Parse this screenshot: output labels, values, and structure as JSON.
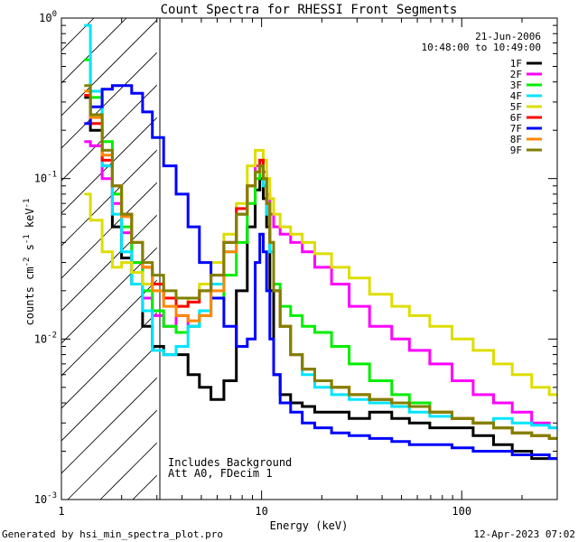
{
  "chart_data": {
    "type": "line",
    "title": "Count Spectra for RHESSI Front Segments",
    "xlabel": "Energy (keV)",
    "ylabel_parts": [
      "counts cm",
      "-2",
      " s",
      "-1",
      " keV",
      "-1"
    ],
    "xscale": "log",
    "yscale": "log",
    "xlim": [
      1,
      300
    ],
    "ylim": [
      0.001,
      1
    ],
    "x_ticks": [
      {
        "value": 1,
        "label": "1"
      },
      {
        "value": 10,
        "label": "10"
      },
      {
        "value": 100,
        "label": "100"
      }
    ],
    "y_ticks": [
      {
        "value": 1,
        "base": "10",
        "exp": "0"
      },
      {
        "value": 0.1,
        "base": "10",
        "exp": "-1"
      },
      {
        "value": 0.01,
        "base": "10",
        "exp": "-2"
      },
      {
        "value": 0.001,
        "base": "10",
        "exp": "-3"
      }
    ],
    "date": "21-Jun-2006",
    "time_range": "10:48:00 to 10:49:00",
    "annotations": [
      "Includes Background",
      "Att A0, FDecim 1"
    ],
    "hatched_region_x": [
      1,
      3
    ],
    "x": [
      1.3,
      1.5,
      1.7,
      1.9,
      2.1,
      2.4,
      2.7,
      3.0,
      3.5,
      4.0,
      4.6,
      5.2,
      6.0,
      7.0,
      8.0,
      9.0,
      9.6,
      10.0,
      10.4,
      10.8,
      11.2,
      11.8,
      13,
      15,
      17,
      20,
      25,
      30,
      40,
      50,
      60,
      80,
      100,
      130,
      160,
      200,
      250,
      300
    ],
    "series": [
      {
        "name": "1F",
        "color": "#000000",
        "values": [
          0.32,
          0.2,
          0.12,
          0.05,
          0.032,
          0.022,
          0.012,
          0.009,
          0.008,
          0.008,
          0.006,
          0.005,
          0.0042,
          0.0055,
          0.02,
          0.05,
          0.085,
          0.1,
          0.075,
          0.05,
          0.02,
          0.006,
          0.0045,
          0.004,
          0.0038,
          0.0035,
          0.0035,
          0.0032,
          0.0035,
          0.0032,
          0.003,
          0.0028,
          0.0028,
          0.0025,
          0.0022,
          0.002,
          0.0018,
          0.0018
        ]
      },
      {
        "name": "2F",
        "color": "#ff00ff",
        "values": [
          0.17,
          0.16,
          0.1,
          0.07,
          0.046,
          0.03,
          0.018,
          0.014,
          0.012,
          0.014,
          0.012,
          0.014,
          0.022,
          0.04,
          0.06,
          0.09,
          0.12,
          0.13,
          0.11,
          0.08,
          0.06,
          0.05,
          0.045,
          0.04,
          0.035,
          0.028,
          0.022,
          0.016,
          0.012,
          0.01,
          0.0085,
          0.007,
          0.0055,
          0.0045,
          0.004,
          0.0035,
          0.003,
          0.0028
        ]
      },
      {
        "name": "3F",
        "color": "#00ee00",
        "values": [
          0.55,
          0.32,
          0.17,
          0.08,
          0.05,
          0.03,
          0.02,
          0.015,
          0.012,
          0.011,
          0.012,
          0.014,
          0.018,
          0.025,
          0.04,
          0.07,
          0.1,
          0.12,
          0.09,
          0.06,
          0.035,
          0.022,
          0.016,
          0.014,
          0.012,
          0.011,
          0.009,
          0.007,
          0.0055,
          0.0045,
          0.004,
          0.0035,
          0.0032,
          0.003,
          0.0028,
          0.0026,
          0.0025,
          0.0024
        ]
      },
      {
        "name": "4F",
        "color": "#00e5ff",
        "values": [
          0.9,
          0.35,
          0.12,
          0.06,
          0.035,
          0.022,
          0.015,
          0.0085,
          0.008,
          0.009,
          0.012,
          0.015,
          0.022,
          0.035,
          0.06,
          0.09,
          0.11,
          0.12,
          0.09,
          0.06,
          0.035,
          0.02,
          0.012,
          0.008,
          0.006,
          0.005,
          0.0045,
          0.0042,
          0.004,
          0.0038,
          0.0035,
          0.0033,
          0.0032,
          0.003,
          0.0032,
          0.003,
          0.0029,
          0.0028
        ]
      },
      {
        "name": "5F",
        "color": "#dddd00",
        "values": [
          0.08,
          0.055,
          0.035,
          0.028,
          0.03,
          0.026,
          0.022,
          0.02,
          0.018,
          0.016,
          0.018,
          0.022,
          0.03,
          0.045,
          0.07,
          0.12,
          0.15,
          0.15,
          0.13,
          0.1,
          0.075,
          0.06,
          0.05,
          0.045,
          0.04,
          0.034,
          0.028,
          0.024,
          0.019,
          0.016,
          0.014,
          0.012,
          0.01,
          0.0085,
          0.007,
          0.006,
          0.005,
          0.0045
        ]
      },
      {
        "name": "6F",
        "color": "#ff0000",
        "values": [
          0.33,
          0.22,
          0.13,
          0.09,
          0.06,
          0.04,
          0.028,
          0.022,
          0.018,
          0.016,
          0.017,
          0.02,
          0.025,
          0.04,
          0.065,
          0.09,
          0.11,
          0.13,
          0.1,
          0.07,
          0.04,
          0.02,
          0.012,
          0.008,
          0.0065,
          0.0055,
          0.005,
          0.0045,
          0.0042,
          0.004,
          0.0038,
          0.0035,
          0.0032,
          0.003,
          0.0028,
          0.0026,
          0.0025,
          0.0024
        ]
      },
      {
        "name": "7F",
        "color": "#0000ff",
        "values": [
          0.22,
          0.28,
          0.36,
          0.38,
          0.38,
          0.34,
          0.26,
          0.18,
          0.12,
          0.08,
          0.05,
          0.03,
          0.018,
          0.012,
          0.009,
          0.01,
          0.03,
          0.045,
          0.035,
          0.02,
          0.01,
          0.006,
          0.004,
          0.0035,
          0.003,
          0.0028,
          0.0026,
          0.0025,
          0.0024,
          0.0023,
          0.0022,
          0.0022,
          0.0021,
          0.002,
          0.002,
          0.0019,
          0.0019,
          0.0018
        ]
      },
      {
        "name": "8F",
        "color": "#ff8800",
        "values": [
          0.35,
          0.24,
          0.14,
          0.09,
          0.058,
          0.04,
          0.028,
          0.02,
          0.016,
          0.014,
          0.013,
          0.014,
          0.02,
          0.035,
          0.06,
          0.09,
          0.11,
          0.12,
          0.1,
          0.07,
          0.04,
          0.02,
          0.012,
          0.008,
          0.0065,
          0.0055,
          0.005,
          0.0045,
          0.0042,
          0.004,
          0.0038,
          0.0035,
          0.0032,
          0.003,
          0.0028,
          0.0026,
          0.0025,
          0.0024
        ]
      },
      {
        "name": "9F",
        "color": "#808000",
        "values": [
          0.38,
          0.25,
          0.15,
          0.09,
          0.06,
          0.04,
          0.03,
          0.025,
          0.02,
          0.018,
          0.018,
          0.02,
          0.025,
          0.04,
          0.06,
          0.09,
          0.11,
          0.12,
          0.1,
          0.07,
          0.04,
          0.02,
          0.012,
          0.008,
          0.0065,
          0.0055,
          0.005,
          0.0045,
          0.0042,
          0.004,
          0.0038,
          0.0035,
          0.0032,
          0.003,
          0.0028,
          0.0026,
          0.0025,
          0.0024
        ]
      }
    ]
  },
  "footer": {
    "generated_by": "Generated by hsi_min_spectra_plot.pro",
    "timestamp": "12-Apr-2023 07:02"
  }
}
